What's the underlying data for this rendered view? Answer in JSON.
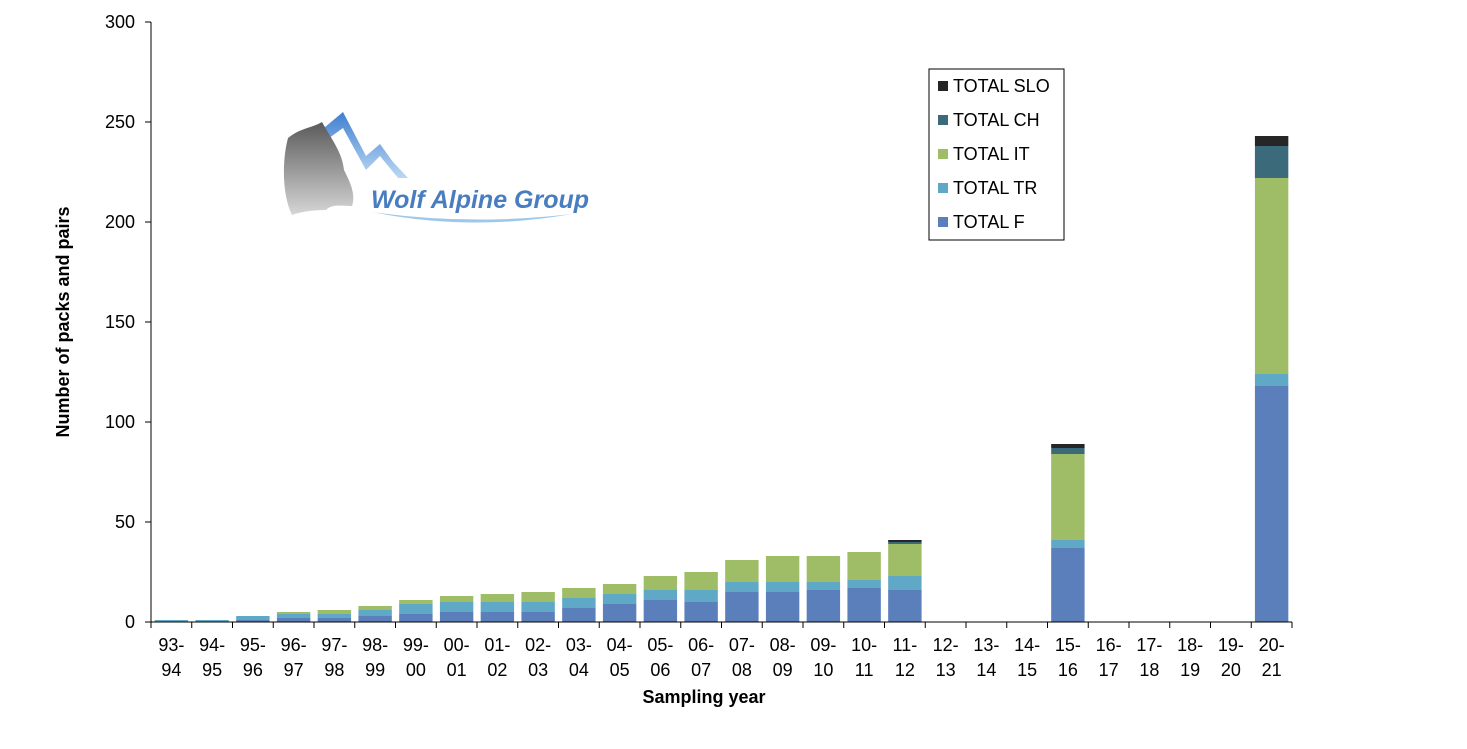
{
  "logo": {
    "text": "Wolf Alpine Group"
  },
  "colors": {
    "TOTAL F": "#5b7fbb",
    "TOTAL TR": "#5fa8c6",
    "TOTAL IT": "#9fbd67",
    "TOTAL CH": "#3b6b7a",
    "TOTAL SLO": "#262626",
    "logo_text": "#4a7dbf"
  },
  "chart_data": {
    "type": "bar",
    "stacked": true,
    "title": "",
    "xlabel": "Sampling year",
    "ylabel": "Number of  packs and pairs",
    "ylim": [
      0,
      300
    ],
    "yticks": [
      0,
      50,
      100,
      150,
      200,
      250,
      300
    ],
    "grid": false,
    "legend_position": "top-right",
    "categories": [
      [
        "93-",
        "94"
      ],
      [
        "94-",
        "95"
      ],
      [
        "95-",
        "96"
      ],
      [
        "96-",
        "97"
      ],
      [
        "97-",
        "98"
      ],
      [
        "98-",
        "99"
      ],
      [
        "99-",
        "00"
      ],
      [
        "00-",
        "01"
      ],
      [
        "01-",
        "02"
      ],
      [
        "02-",
        "03"
      ],
      [
        "03-",
        "04"
      ],
      [
        "04-",
        "05"
      ],
      [
        "05-",
        "06"
      ],
      [
        "06-",
        "07"
      ],
      [
        "07-",
        "08"
      ],
      [
        "08-",
        "09"
      ],
      [
        "09-",
        "10"
      ],
      [
        "10-",
        "11"
      ],
      [
        "11-",
        "12"
      ],
      [
        "12-",
        "13"
      ],
      [
        "13-",
        "14"
      ],
      [
        "14-",
        "15"
      ],
      [
        "15-",
        "16"
      ],
      [
        "16-",
        "17"
      ],
      [
        "17-",
        "18"
      ],
      [
        "18-",
        "19"
      ],
      [
        "19-",
        "20"
      ],
      [
        "20-",
        "21"
      ]
    ],
    "series": [
      {
        "name": "TOTAL F",
        "values": [
          0,
          0,
          1,
          2,
          2,
          3,
          4,
          5,
          5,
          5,
          7,
          9,
          11,
          10,
          15,
          15,
          16,
          17,
          16,
          0,
          0,
          0,
          37,
          0,
          0,
          0,
          0,
          118
        ]
      },
      {
        "name": "TOTAL TR",
        "values": [
          1,
          1,
          2,
          2,
          2,
          3,
          5,
          5,
          5,
          5,
          5,
          5,
          5,
          6,
          5,
          5,
          4,
          4,
          7,
          0,
          0,
          0,
          4,
          0,
          0,
          0,
          0,
          6
        ]
      },
      {
        "name": "TOTAL IT",
        "values": [
          0,
          0,
          0,
          1,
          2,
          2,
          2,
          3,
          4,
          5,
          5,
          5,
          7,
          9,
          11,
          13,
          13,
          14,
          16,
          0,
          0,
          0,
          43,
          0,
          0,
          0,
          0,
          98
        ]
      },
      {
        "name": "TOTAL CH",
        "values": [
          0,
          0,
          0,
          0,
          0,
          0,
          0,
          0,
          0,
          0,
          0,
          0,
          0,
          0,
          0,
          0,
          0,
          0,
          1,
          0,
          0,
          0,
          3,
          0,
          0,
          0,
          0,
          16
        ]
      },
      {
        "name": "TOTAL SLO",
        "values": [
          0,
          0,
          0,
          0,
          0,
          0,
          0,
          0,
          0,
          0,
          0,
          0,
          0,
          0,
          0,
          0,
          0,
          0,
          1,
          0,
          0,
          0,
          2,
          0,
          0,
          0,
          0,
          5
        ]
      }
    ],
    "legend_order": [
      "TOTAL SLO",
      "TOTAL CH",
      "TOTAL IT",
      "TOTAL TR",
      "TOTAL F"
    ]
  }
}
